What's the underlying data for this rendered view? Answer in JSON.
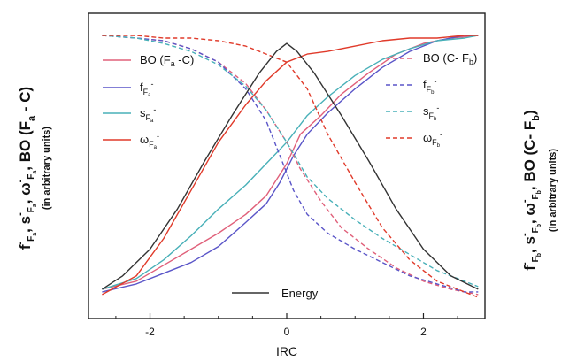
{
  "chart_data": {
    "type": "line",
    "xlabel": "IRC",
    "xlim": [
      -2.9,
      2.9
    ],
    "ylim": [
      0,
      1
    ],
    "xticks": [
      "-2",
      "0",
      "2"
    ],
    "ylabel_left": {
      "text": "f⁻_Fa, s⁻_Fa, ω⁻_Fa, BO (Fa - C)",
      "sub": "(in arbitrary units)"
    },
    "ylabel_right": {
      "text": "f⁻_Fb, s⁻_Fb, ω⁻_Fb, BO (C- Fb)",
      "sub": "(in arbitrary units)"
    },
    "legend_left": [
      "BO (Fₐ -C)",
      "f⁻_Fₐ",
      "s⁻_Fₐ",
      "ω⁻_Fₐ"
    ],
    "legend_right": [
      "BO (C- F_b)",
      "f⁻_F_b",
      "s⁻_F_b",
      "ω⁻_F_b"
    ],
    "legend_bottom": "Energy",
    "colors": {
      "pink": "#e0607a",
      "blue": "#5a55c8",
      "cyan": "#48b0b8",
      "red": "#e03a2a",
      "black": "#333333"
    },
    "series": [
      {
        "name": "BO (Fa -C)",
        "color": "#e0607a",
        "dashed": false,
        "x": [
          -2.7,
          -2.2,
          -1.8,
          -1.4,
          -1.0,
          -0.6,
          -0.3,
          0,
          0.2,
          0.5,
          0.8,
          1.2,
          1.6,
          2.0,
          2.4,
          2.8
        ],
        "y": [
          0.05,
          0.08,
          0.14,
          0.2,
          0.26,
          0.33,
          0.4,
          0.52,
          0.63,
          0.7,
          0.78,
          0.86,
          0.93,
          0.97,
          0.99,
          1.0
        ]
      },
      {
        "name": "f_Fa",
        "color": "#5a55c8",
        "dashed": false,
        "x": [
          -2.7,
          -2.2,
          -1.8,
          -1.4,
          -1.0,
          -0.6,
          -0.3,
          -0.1,
          0.1,
          0.3,
          0.6,
          1.0,
          1.4,
          1.8,
          2.2,
          2.6,
          2.8
        ],
        "y": [
          0.04,
          0.07,
          0.11,
          0.15,
          0.21,
          0.3,
          0.37,
          0.45,
          0.55,
          0.63,
          0.71,
          0.8,
          0.88,
          0.94,
          0.98,
          1.0,
          1.0
        ]
      },
      {
        "name": "s_Fa",
        "color": "#48b0b8",
        "dashed": false,
        "x": [
          -2.7,
          -2.2,
          -1.8,
          -1.4,
          -1.0,
          -0.6,
          -0.3,
          0,
          0.3,
          0.6,
          1.0,
          1.4,
          1.8,
          2.2,
          2.6,
          2.8
        ],
        "y": [
          0.05,
          0.09,
          0.16,
          0.25,
          0.35,
          0.44,
          0.52,
          0.6,
          0.7,
          0.77,
          0.85,
          0.91,
          0.95,
          0.98,
          0.99,
          1.0
        ]
      },
      {
        "name": "omega_Fa",
        "color": "#e03a2a",
        "dashed": false,
        "x": [
          -2.7,
          -2.2,
          -1.8,
          -1.4,
          -1.0,
          -0.6,
          -0.3,
          0,
          0.3,
          0.6,
          1.0,
          1.4,
          1.8,
          2.2,
          2.6,
          2.8
        ],
        "y": [
          0.03,
          0.1,
          0.24,
          0.42,
          0.6,
          0.74,
          0.83,
          0.9,
          0.93,
          0.94,
          0.96,
          0.98,
          0.99,
          0.99,
          1.0,
          1.0
        ]
      },
      {
        "name": "BO (C- Fb)",
        "color": "#e0607a",
        "dashed": true,
        "x": [
          -2.7,
          -2.2,
          -1.8,
          -1.4,
          -1.0,
          -0.6,
          -0.3,
          0,
          0.2,
          0.5,
          0.8,
          1.2,
          1.6,
          2.0,
          2.4,
          2.8
        ],
        "y": [
          1.0,
          0.99,
          0.98,
          0.95,
          0.9,
          0.82,
          0.72,
          0.6,
          0.5,
          0.38,
          0.28,
          0.2,
          0.13,
          0.08,
          0.05,
          0.03
        ]
      },
      {
        "name": "f_Fb",
        "color": "#5a55c8",
        "dashed": true,
        "x": [
          -2.7,
          -2.2,
          -1.8,
          -1.4,
          -1.0,
          -0.6,
          -0.3,
          -0.1,
          0.1,
          0.3,
          0.6,
          1.0,
          1.4,
          1.8,
          2.2,
          2.6,
          2.8
        ],
        "y": [
          1.0,
          0.99,
          0.98,
          0.95,
          0.9,
          0.8,
          0.68,
          0.55,
          0.42,
          0.33,
          0.26,
          0.2,
          0.15,
          0.1,
          0.07,
          0.04,
          0.04
        ]
      },
      {
        "name": "s_Fb",
        "color": "#48b0b8",
        "dashed": true,
        "x": [
          -2.7,
          -2.2,
          -1.8,
          -1.4,
          -1.0,
          -0.6,
          -0.3,
          0,
          0.3,
          0.6,
          1.0,
          1.4,
          1.8,
          2.2,
          2.6,
          2.8
        ],
        "y": [
          1.0,
          0.99,
          0.97,
          0.94,
          0.89,
          0.81,
          0.72,
          0.6,
          0.47,
          0.39,
          0.31,
          0.24,
          0.18,
          0.12,
          0.08,
          0.06
        ]
      },
      {
        "name": "omega_Fb",
        "color": "#e03a2a",
        "dashed": true,
        "x": [
          -2.7,
          -2.2,
          -1.8,
          -1.4,
          -1.0,
          -0.6,
          -0.3,
          0,
          0.3,
          0.6,
          1.0,
          1.4,
          1.8,
          2.2,
          2.6,
          2.8
        ],
        "y": [
          1.0,
          1.0,
          0.99,
          0.99,
          0.98,
          0.96,
          0.93,
          0.9,
          0.8,
          0.63,
          0.45,
          0.28,
          0.16,
          0.08,
          0.04,
          0.02
        ]
      },
      {
        "name": "Energy",
        "color": "#333333",
        "dashed": false,
        "x": [
          -2.7,
          -2.4,
          -2.0,
          -1.6,
          -1.2,
          -0.8,
          -0.4,
          -0.15,
          0,
          0.15,
          0.4,
          0.8,
          1.2,
          1.6,
          2.0,
          2.4,
          2.8
        ],
        "y": [
          0.05,
          0.1,
          0.2,
          0.35,
          0.53,
          0.7,
          0.86,
          0.94,
          0.97,
          0.94,
          0.86,
          0.7,
          0.53,
          0.35,
          0.2,
          0.1,
          0.05
        ]
      }
    ]
  }
}
